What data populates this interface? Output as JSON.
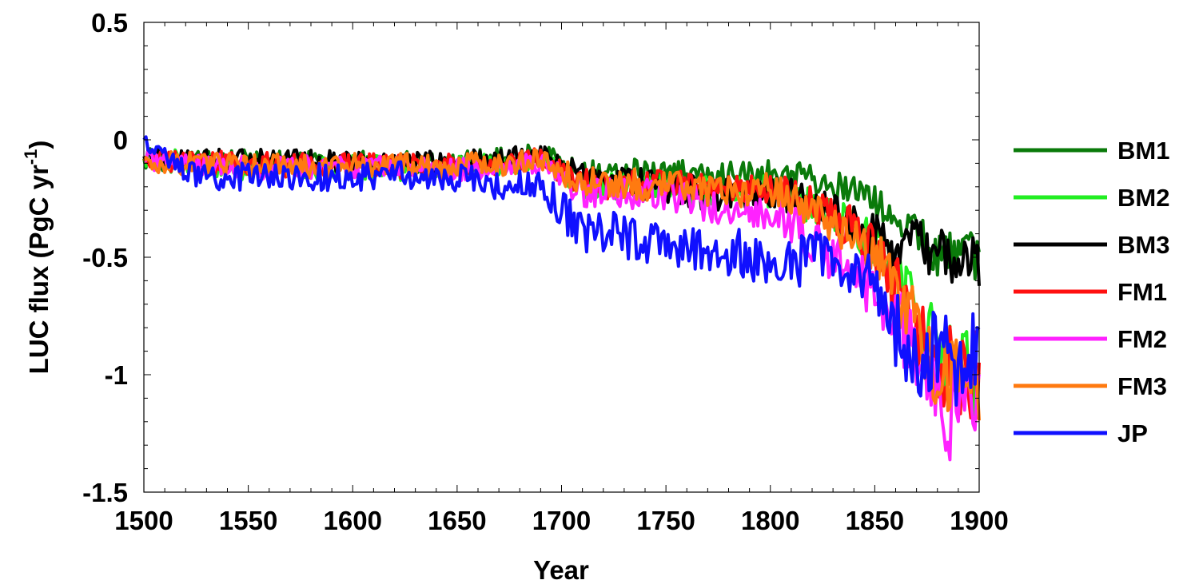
{
  "chart_data": {
    "type": "line",
    "title": "",
    "xlabel": "Year",
    "ylabel_main": "LUC flux (PgC yr",
    "ylabel_sup": "-1",
    "ylabel_close": ")",
    "xlim": [
      1500,
      1900
    ],
    "ylim": [
      -1.5,
      0.5
    ],
    "x_ticks": [
      1500,
      1550,
      1600,
      1650,
      1700,
      1750,
      1800,
      1850,
      1900
    ],
    "x_tick_labels": [
      "1500",
      "1550",
      "1600",
      "1650",
      "1700",
      "1750",
      "1800",
      "1850",
      "1900"
    ],
    "y_ticks": [
      0.5,
      0,
      -0.5,
      -1,
      -1.5
    ],
    "y_tick_labels": [
      "0.5",
      "0",
      "-0.5",
      "-1",
      "-1.5"
    ],
    "grid": false,
    "legend_position": "right",
    "x": [
      1500,
      1525,
      1550,
      1575,
      1600,
      1625,
      1650,
      1675,
      1690,
      1700,
      1710,
      1725,
      1750,
      1775,
      1800,
      1810,
      1825,
      1840,
      1850,
      1860,
      1870,
      1880,
      1890,
      1900
    ],
    "series": [
      {
        "name": "BM1",
        "color": "#0a7a0a",
        "values": [
          -0.08,
          -0.09,
          -0.09,
          -0.1,
          -0.1,
          -0.1,
          -0.1,
          -0.08,
          -0.05,
          -0.1,
          -0.15,
          -0.14,
          -0.13,
          -0.16,
          -0.14,
          -0.15,
          -0.18,
          -0.22,
          -0.28,
          -0.35,
          -0.38,
          -0.48,
          -0.46,
          -0.5
        ]
      },
      {
        "name": "BM2",
        "color": "#22ee22",
        "values": [
          -0.08,
          -0.1,
          -0.12,
          -0.12,
          -0.12,
          -0.12,
          -0.12,
          -0.1,
          -0.07,
          -0.15,
          -0.2,
          -0.2,
          -0.2,
          -0.23,
          -0.22,
          -0.25,
          -0.3,
          -0.38,
          -0.45,
          -0.6,
          -0.75,
          -0.9,
          -0.95,
          -1.0
        ]
      },
      {
        "name": "BM3",
        "color": "#000000",
        "values": [
          -0.07,
          -0.09,
          -0.08,
          -0.09,
          -0.09,
          -0.09,
          -0.09,
          -0.08,
          -0.06,
          -0.1,
          -0.16,
          -0.17,
          -0.2,
          -0.24,
          -0.22,
          -0.24,
          -0.3,
          -0.36,
          -0.42,
          -0.48,
          -0.45,
          -0.5,
          -0.5,
          -0.52
        ]
      },
      {
        "name": "FM1",
        "color": "#ff1010",
        "values": [
          -0.08,
          -0.1,
          -0.1,
          -0.11,
          -0.11,
          -0.11,
          -0.11,
          -0.1,
          -0.08,
          -0.14,
          -0.19,
          -0.19,
          -0.19,
          -0.22,
          -0.2,
          -0.24,
          -0.3,
          -0.38,
          -0.46,
          -0.62,
          -0.8,
          -0.95,
          -1.0,
          -1.0
        ]
      },
      {
        "name": "FM2",
        "color": "#ff22ff",
        "values": [
          -0.09,
          -0.11,
          -0.12,
          -0.12,
          -0.12,
          -0.13,
          -0.13,
          -0.12,
          -0.1,
          -0.16,
          -0.22,
          -0.22,
          -0.24,
          -0.3,
          -0.3,
          -0.36,
          -0.48,
          -0.55,
          -0.65,
          -0.75,
          -0.95,
          -1.1,
          -1.2,
          -1.15
        ]
      },
      {
        "name": "FM3",
        "color": "#ff7a10",
        "values": [
          -0.09,
          -0.1,
          -0.11,
          -0.11,
          -0.11,
          -0.11,
          -0.11,
          -0.1,
          -0.08,
          -0.14,
          -0.18,
          -0.18,
          -0.2,
          -0.22,
          -0.21,
          -0.25,
          -0.32,
          -0.4,
          -0.48,
          -0.62,
          -0.82,
          -0.96,
          -1.0,
          -1.02
        ]
      },
      {
        "name": "JP",
        "color": "#1010ff",
        "values": [
          0.0,
          -0.15,
          -0.16,
          -0.16,
          -0.16,
          -0.15,
          -0.16,
          -0.2,
          -0.2,
          -0.3,
          -0.38,
          -0.4,
          -0.45,
          -0.48,
          -0.5,
          -0.52,
          -0.5,
          -0.55,
          -0.6,
          -0.8,
          -0.95,
          -0.9,
          -0.95,
          -0.85
        ]
      }
    ]
  }
}
